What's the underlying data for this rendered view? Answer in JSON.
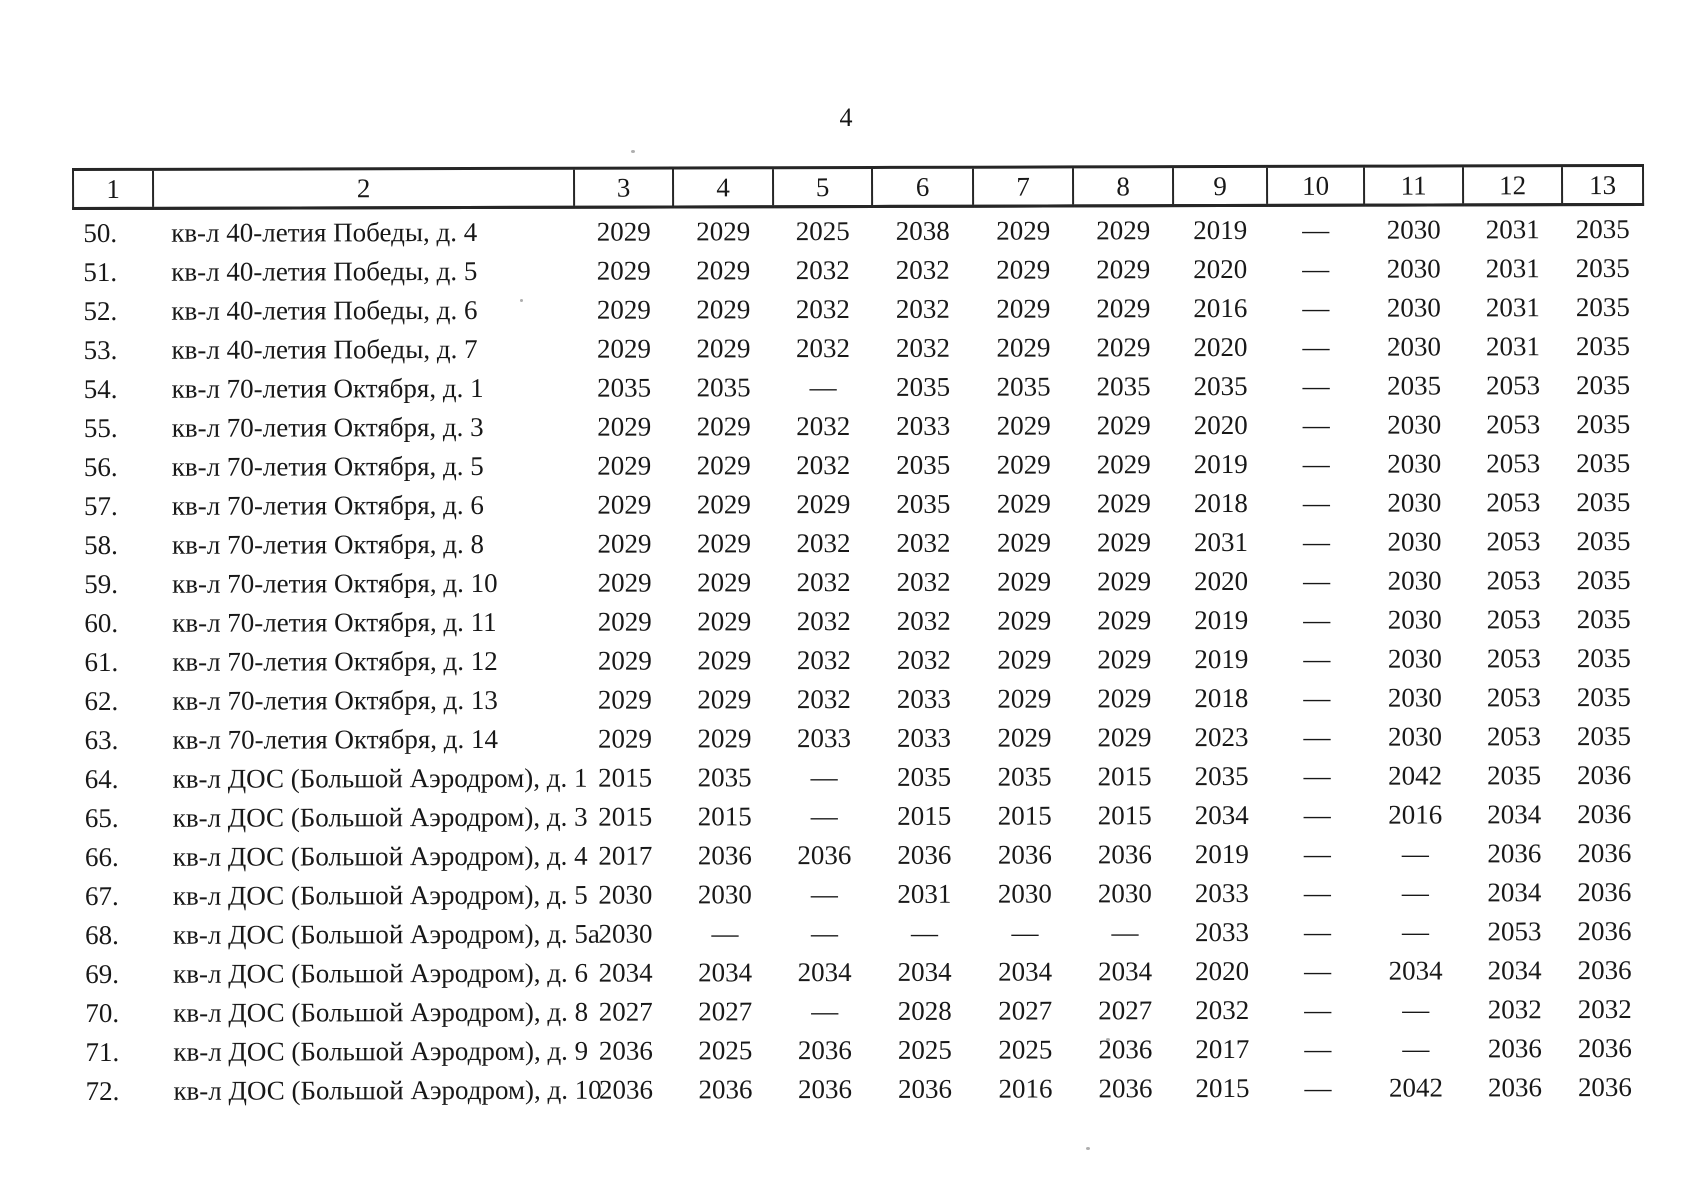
{
  "page": {
    "number": "4"
  },
  "table": {
    "columns": [
      "1",
      "2",
      "3",
      "4",
      "5",
      "6",
      "7",
      "8",
      "9",
      "10",
      "11",
      "12",
      "13"
    ],
    "rows": [
      {
        "num": "50.",
        "address": "кв-л 40-летия Победы, д. 4",
        "values": [
          "2029",
          "2029",
          "2025",
          "2038",
          "2029",
          "2029",
          "2019",
          "—",
          "2030",
          "2031",
          "2035"
        ]
      },
      {
        "num": "51.",
        "address": "кв-л 40-летия Победы, д. 5",
        "values": [
          "2029",
          "2029",
          "2032",
          "2032",
          "2029",
          "2029",
          "2020",
          "—",
          "2030",
          "2031",
          "2035"
        ]
      },
      {
        "num": "52.",
        "address": "кв-л 40-летия Победы, д. 6",
        "values": [
          "2029",
          "2029",
          "2032",
          "2032",
          "2029",
          "2029",
          "2016",
          "—",
          "2030",
          "2031",
          "2035"
        ]
      },
      {
        "num": "53.",
        "address": "кв-л 40-летия Победы, д. 7",
        "values": [
          "2029",
          "2029",
          "2032",
          "2032",
          "2029",
          "2029",
          "2020",
          "—",
          "2030",
          "2031",
          "2035"
        ]
      },
      {
        "num": "54.",
        "address": "кв-л 70-летия Октября, д. 1",
        "values": [
          "2035",
          "2035",
          "—",
          "2035",
          "2035",
          "2035",
          "2035",
          "—",
          "2035",
          "2053",
          "2035"
        ]
      },
      {
        "num": "55.",
        "address": "кв-л 70-летия Октября, д. 3",
        "values": [
          "2029",
          "2029",
          "2032",
          "2033",
          "2029",
          "2029",
          "2020",
          "—",
          "2030",
          "2053",
          "2035"
        ]
      },
      {
        "num": "56.",
        "address": "кв-л 70-летия Октября, д. 5",
        "values": [
          "2029",
          "2029",
          "2032",
          "2035",
          "2029",
          "2029",
          "2019",
          "—",
          "2030",
          "2053",
          "2035"
        ]
      },
      {
        "num": "57.",
        "address": "кв-л 70-летия Октября, д. 6",
        "values": [
          "2029",
          "2029",
          "2029",
          "2035",
          "2029",
          "2029",
          "2018",
          "—",
          "2030",
          "2053",
          "2035"
        ]
      },
      {
        "num": "58.",
        "address": "кв-л 70-летия Октября, д. 8",
        "values": [
          "2029",
          "2029",
          "2032",
          "2032",
          "2029",
          "2029",
          "2031",
          "—",
          "2030",
          "2053",
          "2035"
        ]
      },
      {
        "num": "59.",
        "address": "кв-л 70-летия Октября, д. 10",
        "values": [
          "2029",
          "2029",
          "2032",
          "2032",
          "2029",
          "2029",
          "2020",
          "—",
          "2030",
          "2053",
          "2035"
        ]
      },
      {
        "num": "60.",
        "address": "кв-л 70-летия Октября, д. 11",
        "values": [
          "2029",
          "2029",
          "2032",
          "2032",
          "2029",
          "2029",
          "2019",
          "—",
          "2030",
          "2053",
          "2035"
        ]
      },
      {
        "num": "61.",
        "address": "кв-л 70-летия Октября, д. 12",
        "values": [
          "2029",
          "2029",
          "2032",
          "2032",
          "2029",
          "2029",
          "2019",
          "—",
          "2030",
          "2053",
          "2035"
        ]
      },
      {
        "num": "62.",
        "address": "кв-л 70-летия Октября, д. 13",
        "values": [
          "2029",
          "2029",
          "2032",
          "2033",
          "2029",
          "2029",
          "2018",
          "—",
          "2030",
          "2053",
          "2035"
        ]
      },
      {
        "num": "63.",
        "address": "кв-л 70-летия Октября, д. 14",
        "values": [
          "2029",
          "2029",
          "2033",
          "2033",
          "2029",
          "2029",
          "2023",
          "—",
          "2030",
          "2053",
          "2035"
        ]
      },
      {
        "num": "64.",
        "address": "кв-л ДОС (Большой Аэродром), д. 1",
        "values": [
          "2015",
          "2035",
          "—",
          "2035",
          "2035",
          "2015",
          "2035",
          "—",
          "2042",
          "2035",
          "2036"
        ]
      },
      {
        "num": "65.",
        "address": "кв-л ДОС (Большой Аэродром), д. 3",
        "values": [
          "2015",
          "2015",
          "—",
          "2015",
          "2015",
          "2015",
          "2034",
          "—",
          "2016",
          "2034",
          "2036"
        ]
      },
      {
        "num": "66.",
        "address": "кв-л ДОС (Большой Аэродром), д. 4",
        "values": [
          "2017",
          "2036",
          "2036",
          "2036",
          "2036",
          "2036",
          "2019",
          "—",
          "—",
          "2036",
          "2036"
        ]
      },
      {
        "num": "67.",
        "address": "кв-л ДОС (Большой Аэродром), д. 5",
        "values": [
          "2030",
          "2030",
          "—",
          "2031",
          "2030",
          "2030",
          "2033",
          "—",
          "—",
          "2034",
          "2036"
        ]
      },
      {
        "num": "68.",
        "address": "кв-л ДОС (Большой Аэродром), д. 5а",
        "values": [
          "2030",
          "—",
          "—",
          "—",
          "—",
          "—",
          "2033",
          "—",
          "—",
          "2053",
          "2036"
        ]
      },
      {
        "num": "69.",
        "address": "кв-л ДОС (Большой Аэродром), д. 6",
        "values": [
          "2034",
          "2034",
          "2034",
          "2034",
          "2034",
          "2034",
          "2020",
          "—",
          "2034",
          "2034",
          "2036"
        ]
      },
      {
        "num": "70.",
        "address": "кв-л ДОС (Большой Аэродром), д. 8",
        "values": [
          "2027",
          "2027",
          "—",
          "2028",
          "2027",
          "2027",
          "2032",
          "—",
          "—",
          "2032",
          "2032"
        ]
      },
      {
        "num": "71.",
        "address": "кв-л ДОС (Большой Аэродром), д. 9",
        "values": [
          "2036",
          "2025",
          "2036",
          "2025",
          "2025",
          "2036",
          "2017",
          "—",
          "—",
          "2036",
          "2036"
        ]
      },
      {
        "num": "72.",
        "address": "кв-л ДОС (Большой Аэродром), д. 10",
        "values": [
          "2036",
          "2036",
          "2036",
          "2036",
          "2016",
          "2036",
          "2015",
          "—",
          "2042",
          "2036",
          "2036"
        ]
      }
    ]
  }
}
